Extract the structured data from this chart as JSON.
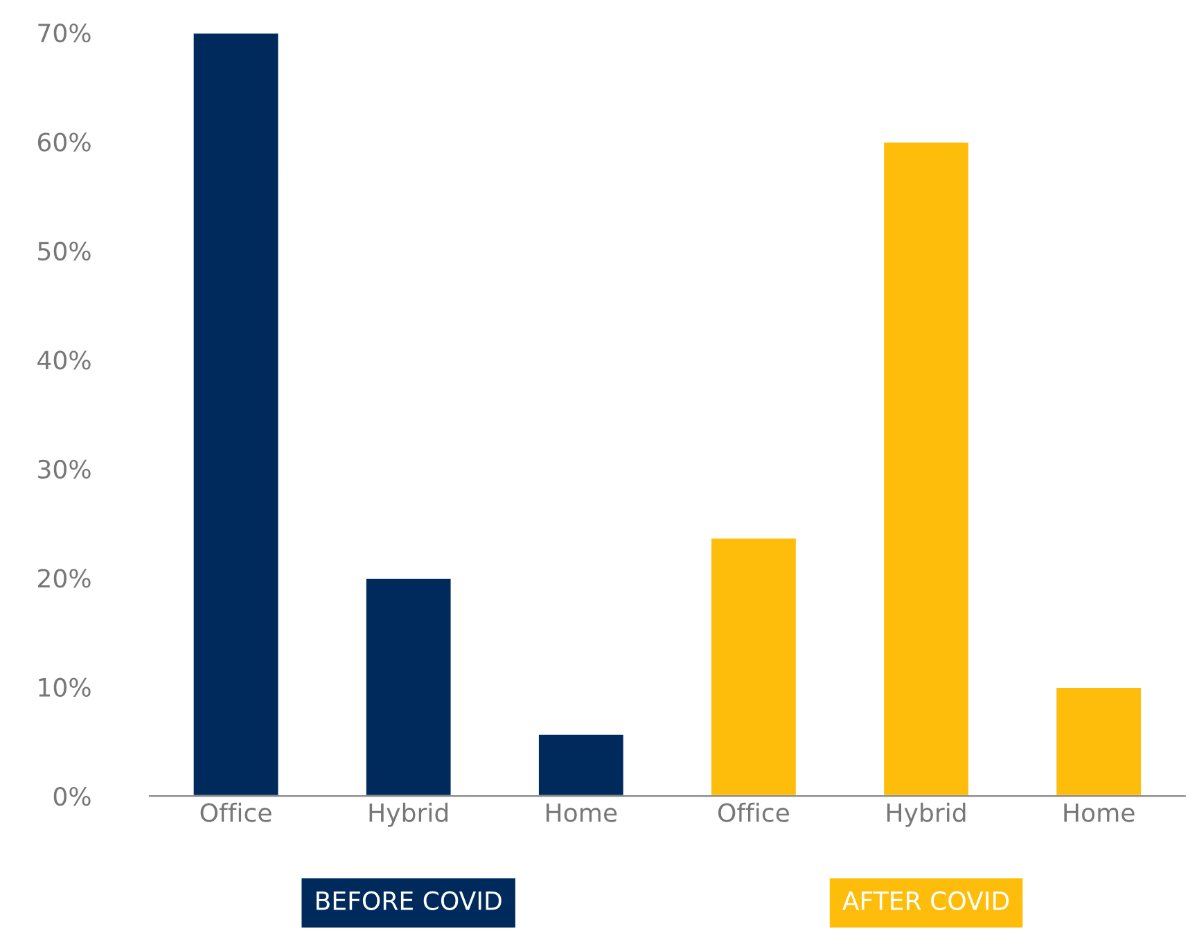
{
  "chart_data": {
    "type": "bar",
    "categories": [
      "Office",
      "Hybrid",
      "Home",
      "Office",
      "Hybrid",
      "Home"
    ],
    "series": [
      {
        "name": "BEFORE COVID",
        "color": "#002a5c",
        "values": [
          70,
          20,
          5.7,
          null,
          null,
          null
        ]
      },
      {
        "name": "AFTER COVID",
        "color": "#fdbd0a",
        "values": [
          null,
          null,
          null,
          23.7,
          60,
          10
        ]
      }
    ],
    "ylim": [
      0,
      70
    ],
    "yticks": [
      {
        "value": 0,
        "label": "0%"
      },
      {
        "value": 10,
        "label": "10%"
      },
      {
        "value": 20,
        "label": "20%"
      },
      {
        "value": 30,
        "label": "30%"
      },
      {
        "value": 40,
        "label": "40%"
      },
      {
        "value": 50,
        "label": "50%"
      },
      {
        "value": 60,
        "label": "60%"
      },
      {
        "value": 70,
        "label": "70%"
      }
    ],
    "grid": false,
    "legend": "bottom"
  }
}
